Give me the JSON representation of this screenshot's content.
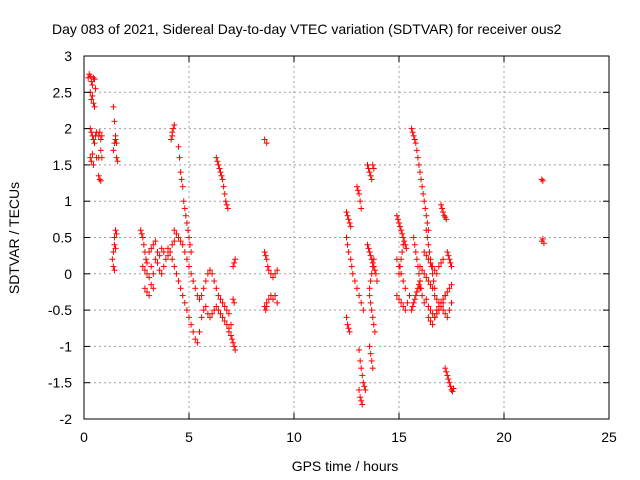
{
  "chart_data": {
    "type": "scatter",
    "title": "Day 083 of 2021, Sidereal Day-to-day VTEC variation (SDTVAR) for receiver ous2",
    "xlabel": "GPS time / hours",
    "ylabel": "SDTVAR / TECUs",
    "xlim": [
      0,
      25
    ],
    "ylim": [
      -2,
      3
    ],
    "xticks": [
      0,
      5,
      10,
      15,
      20,
      25
    ],
    "yticks": [
      -2,
      -1.5,
      -1,
      -0.5,
      0,
      0.5,
      1,
      1.5,
      2,
      2.5,
      3
    ],
    "grid": true,
    "marker": "+",
    "series": [
      {
        "name": "SDTVAR",
        "color": "#ff0000",
        "x": [
          0.2,
          0.25,
          0.3,
          0.35,
          0.4,
          0.45,
          0.5,
          0.55,
          0.3,
          0.35,
          0.4,
          0.45,
          0.5,
          0.3,
          0.35,
          0.4,
          0.45,
          0.5,
          0.55,
          0.6,
          0.3,
          0.35,
          0.4,
          0.45,
          0.6,
          0.7,
          0.75,
          0.8,
          0.85,
          0.7,
          0.75,
          0.8,
          0.7,
          0.8,
          0.85,
          1.4,
          1.45,
          1.5,
          1.55,
          1.4,
          1.45,
          1.5,
          1.55,
          1.6,
          1.45,
          1.5,
          1.55,
          1.35,
          1.4,
          1.45,
          1.4,
          1.45,
          1.5,
          2.7,
          2.75,
          2.8,
          2.85,
          2.9,
          2.95,
          3.0,
          3.1,
          3.2,
          3.3,
          3.4,
          3.5,
          3.6,
          3.7,
          3.8,
          3.9,
          4.0,
          4.1,
          4.2,
          4.3,
          2.8,
          2.9,
          3.0,
          3.1,
          3.2,
          3.3,
          3.4,
          3.5,
          3.6,
          3.7,
          3.8,
          2.9,
          3.0,
          3.1,
          3.2,
          3.3,
          4.0,
          4.1,
          4.2,
          4.3,
          4.4,
          4.5,
          4.6,
          4.7,
          4.8,
          4.9,
          5.0,
          5.1,
          5.2,
          5.3,
          5.4,
          5.5,
          5.6,
          5.7,
          5.8,
          5.9,
          6.0,
          6.1,
          6.2,
          6.3,
          6.4,
          6.5,
          6.6,
          6.7,
          6.8,
          6.9,
          7.0,
          4.3,
          4.4,
          4.5,
          4.6,
          4.7,
          4.8,
          4.9,
          5.0,
          5.1,
          5.2,
          5.3,
          5.4,
          5.5,
          5.6,
          5.7,
          5.8,
          5.9,
          6.0,
          6.1,
          6.2,
          6.3,
          6.4,
          6.5,
          6.6,
          6.7,
          6.8,
          6.9,
          4.2,
          4.25,
          4.3,
          4.15,
          4.2,
          4.5,
          4.55,
          4.6,
          4.65,
          4.7,
          4.75,
          4.8,
          4.85,
          4.9,
          4.95,
          5.0,
          5.05,
          5.1,
          6.3,
          6.35,
          6.4,
          6.45,
          6.5,
          6.55,
          6.6,
          6.65,
          6.7,
          6.75,
          6.8,
          6.85,
          6.9,
          7.0,
          7.05,
          7.1,
          7.15,
          7.2,
          7.1,
          7.15,
          7.2,
          7.1,
          7.15,
          8.6,
          8.65,
          8.7,
          8.75,
          8.8,
          8.9,
          9.0,
          9.1,
          9.2,
          8.6,
          8.7,
          8.8,
          8.9,
          9.0,
          9.1,
          9.2,
          8.6,
          8.7,
          8.65,
          8.7,
          12.5,
          12.55,
          12.6,
          12.65,
          12.7,
          12.5,
          12.55,
          12.6,
          12.65,
          12.5,
          12.55,
          12.6,
          12.7,
          12.75,
          12.8,
          12.9,
          13.0,
          13.1,
          13.2,
          13.3,
          13.1,
          13.15,
          13.2,
          13.25,
          13.0,
          13.05,
          13.1,
          13.15,
          13.2,
          13.1,
          13.15,
          13.2,
          13.25,
          13.3,
          13.35,
          13.4,
          13.5,
          13.55,
          13.6,
          13.65,
          13.7,
          13.75,
          13.8,
          13.85,
          13.9,
          13.95,
          13.5,
          13.55,
          13.6,
          13.65,
          13.7,
          13.75,
          13.8,
          13.6,
          13.65,
          13.7,
          13.75,
          13.8,
          13.85,
          13.6,
          13.65,
          13.7,
          13.75,
          13.6,
          13.65,
          13.7,
          13.75,
          13.8,
          14.9,
          14.95,
          15.0,
          15.05,
          15.1,
          15.15,
          15.2,
          15.25,
          15.3,
          15.35,
          14.9,
          15.0,
          15.1,
          15.2,
          15.3,
          14.9,
          15.0,
          15.1,
          15.2,
          15.3,
          15.4,
          15.5,
          15.0,
          15.05,
          15.1,
          15.15,
          15.2,
          15.6,
          15.65,
          15.7,
          15.75,
          15.8,
          15.85,
          15.9,
          15.95,
          16.0,
          16.05,
          16.1,
          16.15,
          16.2,
          16.25,
          16.3,
          16.35,
          16.4,
          15.7,
          15.75,
          15.8,
          15.85,
          15.9,
          15.95,
          16.0,
          16.05,
          15.6,
          15.65,
          15.7,
          15.75,
          15.8,
          15.85,
          15.9,
          15.95,
          16.0,
          16.0,
          16.1,
          16.2,
          16.3,
          16.4,
          16.5,
          16.6,
          16.7,
          16.8,
          16.9,
          17.0,
          17.1,
          17.2,
          17.3,
          17.4,
          17.5,
          16.0,
          16.1,
          16.2,
          16.3,
          16.4,
          16.5,
          16.6,
          16.7,
          16.8,
          16.9,
          17.0,
          17.1,
          17.2,
          17.3,
          17.4,
          17.5,
          16.2,
          16.3,
          16.4,
          16.5,
          16.6,
          16.7,
          16.8,
          16.9,
          17.0,
          17.1,
          16.4,
          16.5,
          16.6,
          16.7,
          16.8,
          16.9,
          17.0,
          17.1,
          17.2,
          16.3,
          16.35,
          16.4,
          16.45,
          16.5,
          16.55,
          16.6,
          16.65,
          16.7,
          17.0,
          17.05,
          17.1,
          17.15,
          17.2,
          17.25,
          17.3,
          17.35,
          17.4,
          17.45,
          17.5,
          17.2,
          17.25,
          17.3,
          17.35,
          17.4,
          17.45,
          17.5,
          17.55,
          17.6,
          21.8,
          21.85,
          21.8,
          21.85,
          21.9
        ],
        "y": [
          2.7,
          2.75,
          2.72,
          2.65,
          2.6,
          2.7,
          2.68,
          2.55,
          2.5,
          2.4,
          2.45,
          2.35,
          2.3,
          2.0,
          1.95,
          1.9,
          1.85,
          1.8,
          1.9,
          1.95,
          1.6,
          1.55,
          1.65,
          1.5,
          1.6,
          1.9,
          1.95,
          1.85,
          1.9,
          1.35,
          1.3,
          1.28,
          1.6,
          1.7,
          1.6,
          2.3,
          2.1,
          1.9,
          1.8,
          1.7,
          1.8,
          1.85,
          1.6,
          1.55,
          0.5,
          0.6,
          0.55,
          0.2,
          0.1,
          0.05,
          0.3,
          0.4,
          0.35,
          0.6,
          0.55,
          0.5,
          0.4,
          0.3,
          0.2,
          0.15,
          0.3,
          0.35,
          0.4,
          0.45,
          0.3,
          0.25,
          0.35,
          0.3,
          0.2,
          0.25,
          0.3,
          0.4,
          0.45,
          0.1,
          0.05,
          0.0,
          -0.05,
          0.1,
          0.0,
          0.2,
          0.15,
          0.05,
          0.0,
          0.1,
          -0.2,
          -0.25,
          -0.3,
          -0.15,
          -0.2,
          0.35,
          0.3,
          0.2,
          0.1,
          0.0,
          -0.1,
          -0.2,
          -0.3,
          -0.4,
          -0.5,
          -0.6,
          -0.7,
          -0.8,
          -0.9,
          -0.95,
          -0.8,
          -0.6,
          -0.5,
          -0.45,
          -0.55,
          -0.6,
          -0.55,
          -0.5,
          -0.45,
          -0.5,
          -0.55,
          -0.6,
          -0.65,
          -0.7,
          -0.75,
          -0.7,
          0.6,
          0.55,
          0.5,
          0.45,
          0.4,
          0.3,
          0.2,
          0.1,
          0.0,
          -0.1,
          -0.2,
          -0.3,
          -0.35,
          -0.3,
          -0.2,
          -0.1,
          0.0,
          0.05,
          0.0,
          -0.1,
          -0.2,
          -0.3,
          -0.35,
          -0.4,
          -0.45,
          -0.5,
          -0.55,
          1.9,
          2.0,
          2.05,
          1.85,
          1.95,
          1.75,
          1.6,
          1.4,
          1.3,
          1.2,
          1.0,
          0.9,
          0.8,
          0.7,
          0.6,
          0.5,
          0.4,
          0.3,
          1.6,
          1.55,
          1.5,
          1.45,
          1.4,
          1.35,
          1.3,
          1.2,
          1.1,
          1.0,
          0.95,
          0.9,
          -0.8,
          -0.85,
          -0.9,
          -0.95,
          -1.0,
          -1.05,
          0.1,
          0.15,
          0.2,
          -0.35,
          -0.4,
          0.3,
          0.25,
          0.2,
          0.1,
          0.05,
          0.0,
          -0.05,
          0.0,
          0.05,
          -0.45,
          -0.4,
          -0.35,
          -0.3,
          -0.35,
          -0.3,
          -0.4,
          1.85,
          1.8,
          -0.5,
          -0.45,
          0.85,
          0.8,
          0.75,
          0.7,
          0.65,
          -0.6,
          -0.7,
          -0.75,
          -0.8,
          0.5,
          0.4,
          0.3,
          0.2,
          0.1,
          0.0,
          -0.1,
          -0.2,
          -0.3,
          -0.4,
          -0.5,
          -1.6,
          -1.7,
          -1.75,
          -1.8,
          1.2,
          1.15,
          1.1,
          1.0,
          0.9,
          -1.05,
          -1.2,
          -1.3,
          -1.4,
          -1.5,
          -1.55,
          -1.6,
          0.4,
          0.35,
          0.3,
          0.25,
          0.2,
          0.15,
          0.1,
          0.05,
          0.0,
          -0.1,
          1.5,
          1.45,
          1.4,
          1.35,
          1.3,
          1.5,
          1.45,
          -0.3,
          -0.4,
          -0.5,
          -0.6,
          -0.7,
          -0.8,
          -1.0,
          -1.1,
          -1.2,
          -1.3,
          -0.2,
          -0.1,
          0.0,
          0.1,
          0.2,
          0.8,
          0.75,
          0.7,
          0.65,
          0.6,
          0.55,
          0.5,
          0.45,
          0.4,
          0.35,
          0.2,
          0.1,
          0.0,
          -0.1,
          -0.2,
          -0.3,
          -0.35,
          -0.4,
          -0.45,
          -0.5,
          -0.4,
          -0.3,
          0.0,
          0.1,
          0.2,
          0.3,
          0.4,
          2.0,
          1.95,
          1.9,
          1.85,
          1.8,
          1.7,
          1.6,
          1.5,
          1.4,
          1.3,
          1.2,
          1.1,
          1.0,
          0.9,
          0.8,
          0.7,
          0.6,
          0.5,
          0.4,
          0.3,
          0.2,
          0.1,
          0.0,
          -0.1,
          -0.2,
          -0.5,
          -0.45,
          -0.4,
          -0.35,
          -0.3,
          -0.25,
          -0.2,
          -0.15,
          -0.1,
          -0.2,
          -0.3,
          -0.4,
          -0.35,
          -0.45,
          -0.5,
          -0.55,
          -0.6,
          -0.5,
          -0.45,
          -0.4,
          -0.35,
          -0.3,
          -0.25,
          -0.2,
          -0.15,
          0.1,
          0.05,
          0.0,
          -0.05,
          -0.1,
          -0.15,
          -0.2,
          -0.3,
          -0.35,
          -0.4,
          -0.45,
          -0.5,
          -0.55,
          -0.6,
          -0.5,
          -0.4,
          0.3,
          0.25,
          0.2,
          0.15,
          0.1,
          0.05,
          0.0,
          0.1,
          0.15,
          0.2,
          -0.6,
          -0.65,
          -0.7,
          -0.6,
          -0.55,
          -0.5,
          -0.45,
          -0.4,
          -0.3,
          0.6,
          0.5,
          0.4,
          0.3,
          0.2,
          0.1,
          0.0,
          -0.1,
          -0.2,
          0.95,
          0.9,
          0.85,
          0.8,
          0.78,
          0.75,
          0.3,
          0.25,
          0.2,
          0.15,
          0.1,
          -1.3,
          -1.35,
          -1.4,
          -1.45,
          -1.5,
          -1.55,
          -1.6,
          -1.62,
          -1.58,
          1.3,
          1.28,
          0.45,
          0.48,
          0.42
        ]
      }
    ]
  }
}
